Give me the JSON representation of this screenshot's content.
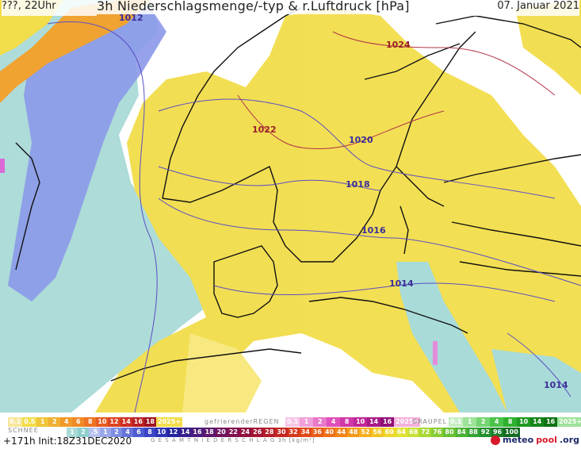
{
  "header": {
    "left": "???, 22Uhr",
    "title": "3h Niederschlagsmenge/-typ & r.Luftdruck [hPa]",
    "date": "07. Januar 2021"
  },
  "isobars": [
    {
      "label": "1012",
      "color": "#3a2f9a"
    },
    {
      "label": "1024",
      "color": "#9a1f2a"
    },
    {
      "label": "1022",
      "color": "#9a1f2a"
    },
    {
      "label": "1020",
      "color": "#3a2f9a"
    },
    {
      "label": "1018",
      "color": "#3a2f9a"
    },
    {
      "label": "1016",
      "color": "#3a2f9a"
    },
    {
      "label": "1014",
      "color": "#3a2f9a"
    },
    {
      "label": "1014",
      "color": "#3a2f9a"
    }
  ],
  "legend": {
    "rain_label": "SCHNEE",
    "rain_scale": [
      "0.1",
      "0.5",
      "1",
      "2",
      "4",
      "6",
      "8",
      "10",
      "12",
      "14",
      "16",
      "18",
      "2025+"
    ],
    "snow_scale_label": "gefrierenderREGEN",
    "snow_scale": [
      "0.1",
      "1",
      "2",
      "4",
      "8",
      "10",
      "14",
      "16",
      "2025+"
    ],
    "graupel_label": "GRAUPEL",
    "graupel_scale": [
      "0.1",
      "1",
      "2",
      "4",
      "8",
      "10",
      "14",
      "16",
      "2025+"
    ],
    "snow_row": [
      "1",
      "2",
      ".5",
      "1",
      "2",
      "4",
      "6",
      "8",
      "10",
      "12",
      "14",
      "16",
      "18",
      "20",
      "22",
      "24",
      "26",
      "28",
      "30",
      "32",
      "34",
      "36",
      "40",
      "44",
      "48",
      "52",
      "56",
      "60",
      "64",
      "68",
      "72",
      "76",
      "80",
      "84",
      "88",
      "92",
      "96",
      "100"
    ],
    "total_label": "G E S A M T N I E D E R S C H L A G   3h   [kg/m²]"
  },
  "footer": {
    "init": "+171h Init:18Z31DEC2020",
    "brand_m": "meteo",
    "brand_p": "pool",
    "brand_org": ".org"
  },
  "colors": {
    "rain_yellow": "#f2dd4a",
    "snow_blue": "#8b99e8",
    "cyan": "#a9dbd8",
    "orange": "#f0a331",
    "land_outline": "#111111",
    "isobar_blue": "#5a4fc4",
    "isobar_red": "#b0354a"
  }
}
